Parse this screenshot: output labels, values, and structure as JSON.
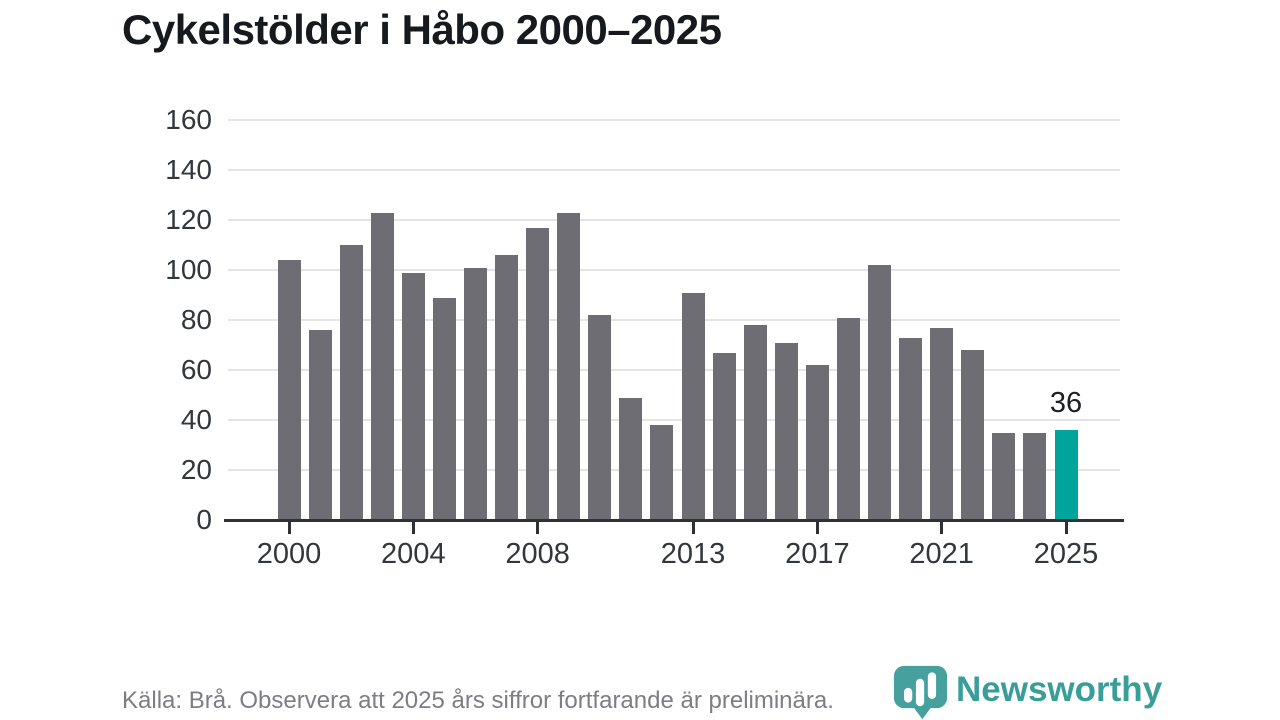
{
  "title": "Cykelstölder i Håbo 2000–2025",
  "footer": {
    "source_note": "Källa: Brå. Observera att 2025 års siffror fortfarande är preliminära."
  },
  "branding": {
    "logo_text": "Newsworthy",
    "logo_icon": "newsworthy-bar-chart-pin-icon"
  },
  "colors": {
    "bar_default": "#6d6d73",
    "bar_highlight": "#00a49b",
    "gridline": "#e4e4e6",
    "axis": "#2e3236",
    "axis_text": "#33373b",
    "title_text": "#16191d",
    "footer_text": "#7d7d85",
    "logo_teal": "#46a19e"
  },
  "chart_data": {
    "type": "bar",
    "title": "Cykelstölder i Håbo 2000–2025",
    "xlabel": "",
    "ylabel": "",
    "x": [
      2000,
      2001,
      2002,
      2003,
      2004,
      2005,
      2006,
      2007,
      2008,
      2009,
      2010,
      2011,
      2012,
      2013,
      2014,
      2015,
      2016,
      2017,
      2018,
      2019,
      2020,
      2021,
      2022,
      2023,
      2024,
      2025
    ],
    "values": [
      104,
      76,
      110,
      123,
      99,
      89,
      101,
      106,
      117,
      123,
      82,
      49,
      38,
      91,
      67,
      78,
      71,
      62,
      81,
      102,
      73,
      77,
      68,
      35,
      35,
      36
    ],
    "highlight_index": 25,
    "highlight_value_label": "36",
    "ylim": [
      0,
      160
    ],
    "y_ticks": [
      0,
      20,
      40,
      60,
      80,
      100,
      120,
      140,
      160
    ],
    "x_tick_labels": [
      "2000",
      "2004",
      "2008",
      "2013",
      "2017",
      "2021",
      "2025"
    ],
    "grid": "horizontal",
    "legend": "none"
  }
}
